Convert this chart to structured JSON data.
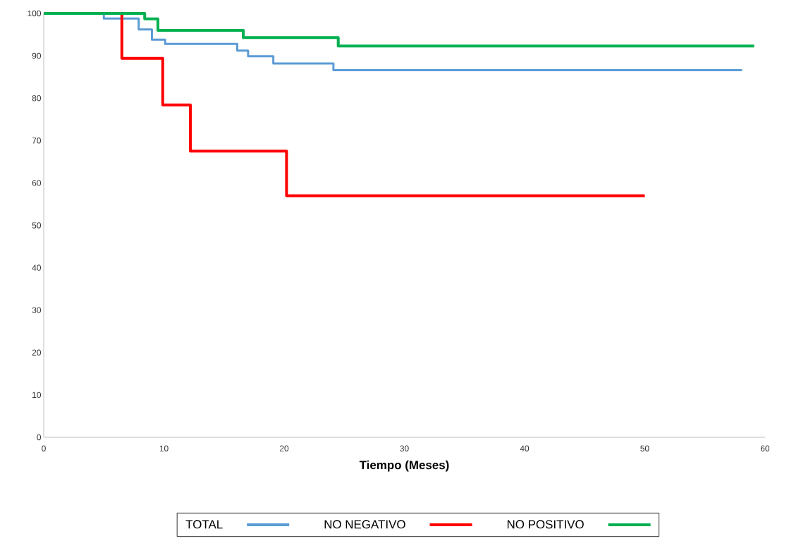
{
  "chart_data": {
    "type": "step",
    "xlabel": "Tiempo (Meses)",
    "xlim": [
      0,
      60
    ],
    "ylim": [
      0,
      100
    ],
    "xticks": [
      0,
      10,
      20,
      30,
      40,
      50,
      60
    ],
    "yticks": [
      0,
      10,
      20,
      30,
      40,
      50,
      60,
      70,
      80,
      90,
      100
    ],
    "legend": "bottom",
    "grid": false,
    "series": [
      {
        "name": "TOTAL",
        "color": "#5b9bd5",
        "x": [
          0,
          5.0,
          7.9,
          9.0,
          10.1,
          16.1,
          17.0,
          19.1,
          24.1,
          58.1
        ],
        "values": [
          100,
          98.8,
          96.2,
          93.8,
          92.8,
          91.2,
          89.9,
          88.2,
          86.6,
          86.6
        ]
      },
      {
        "name": "NO NEGATIVO",
        "color": "#ff0000",
        "x": [
          6.5,
          6.5,
          9.9,
          12.2,
          20.2,
          50
        ],
        "values": [
          100,
          89.4,
          78.4,
          67.5,
          57,
          57
        ]
      },
      {
        "name": "NO POSITIVO",
        "color": "#00b050",
        "x": [
          0,
          8.4,
          9.5,
          16.6,
          24.5,
          59.1
        ],
        "values": [
          100,
          98.7,
          96.0,
          94.3,
          92.3,
          92.3
        ]
      }
    ]
  }
}
